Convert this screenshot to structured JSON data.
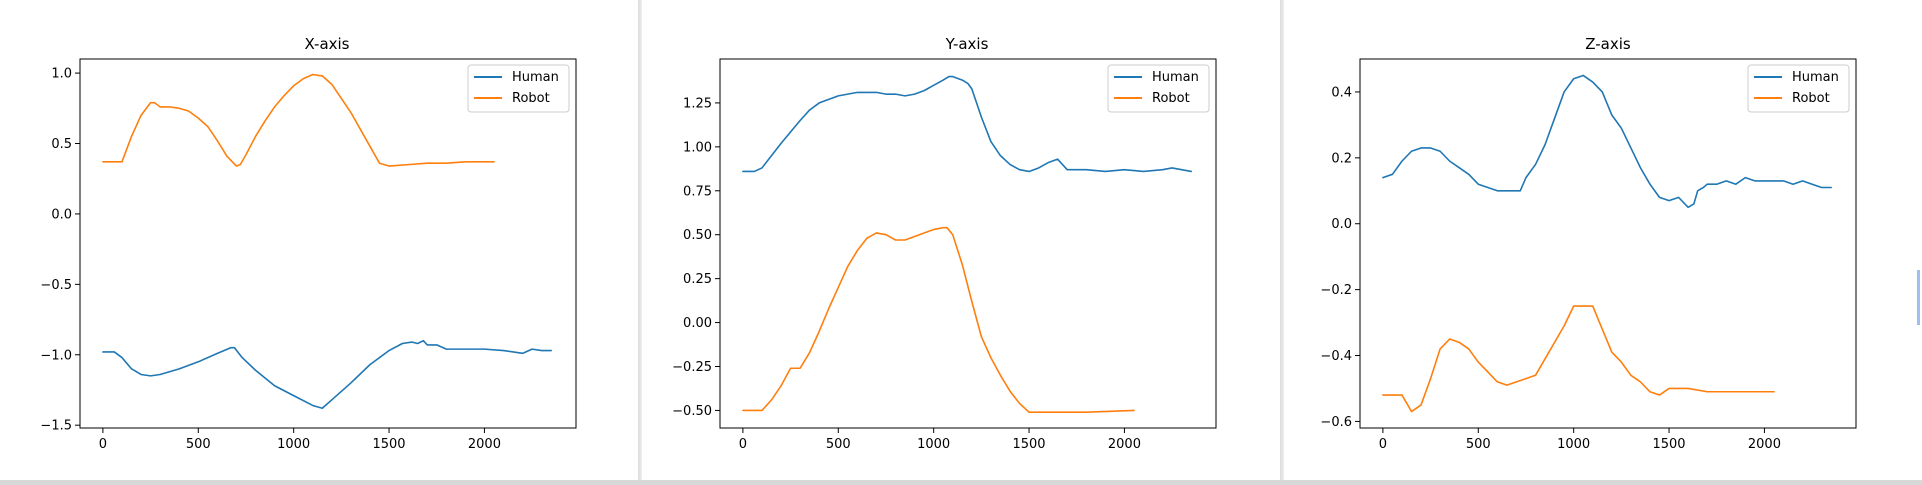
{
  "colors": {
    "human": "#1f77b4",
    "robot": "#ff7f0e"
  },
  "chart_data": [
    {
      "type": "line",
      "title": "X-axis",
      "xlim": [
        -120,
        2480
      ],
      "ylim": [
        -1.52,
        1.1
      ],
      "xticks": [
        0,
        500,
        1000,
        1500,
        2000
      ],
      "xtick_labels": [
        "0",
        "500",
        "1000",
        "1500",
        "2000"
      ],
      "yticks": [
        1.0,
        0.5,
        0.0,
        -0.5,
        -1.0,
        -1.5
      ],
      "ytick_labels": [
        "1.0",
        "0.5",
        "0.0",
        "−0.5",
        "−1.0",
        "−1.5"
      ],
      "legend": "top-right",
      "series": [
        {
          "name": "Human",
          "color": "#1f77b4",
          "x": [
            0,
            60,
            100,
            150,
            200,
            250,
            300,
            400,
            500,
            600,
            670,
            690,
            730,
            800,
            900,
            1000,
            1100,
            1150,
            1200,
            1300,
            1400,
            1500,
            1570,
            1620,
            1650,
            1680,
            1700,
            1750,
            1800,
            1900,
            2000,
            2100,
            2200,
            2250,
            2300,
            2350
          ],
          "y": [
            -0.98,
            -0.98,
            -1.02,
            -1.1,
            -1.14,
            -1.15,
            -1.14,
            -1.1,
            -1.05,
            -0.99,
            -0.95,
            -0.95,
            -1.02,
            -1.11,
            -1.22,
            -1.29,
            -1.36,
            -1.38,
            -1.32,
            -1.2,
            -1.07,
            -0.97,
            -0.92,
            -0.91,
            -0.92,
            -0.9,
            -0.93,
            -0.93,
            -0.96,
            -0.96,
            -0.96,
            -0.97,
            -0.99,
            -0.96,
            -0.97,
            -0.97
          ]
        },
        {
          "name": "Robot",
          "color": "#ff7f0e",
          "x": [
            0,
            100,
            150,
            200,
            250,
            270,
            300,
            350,
            400,
            450,
            500,
            550,
            600,
            650,
            700,
            720,
            750,
            800,
            850,
            900,
            950,
            1000,
            1050,
            1100,
            1150,
            1200,
            1250,
            1300,
            1350,
            1400,
            1450,
            1500,
            1600,
            1700,
            1800,
            1900,
            2050
          ],
          "y": [
            0.37,
            0.37,
            0.55,
            0.7,
            0.79,
            0.79,
            0.76,
            0.76,
            0.75,
            0.73,
            0.68,
            0.62,
            0.52,
            0.41,
            0.34,
            0.35,
            0.42,
            0.55,
            0.66,
            0.76,
            0.84,
            0.91,
            0.96,
            0.99,
            0.98,
            0.92,
            0.82,
            0.72,
            0.6,
            0.48,
            0.36,
            0.34,
            0.35,
            0.36,
            0.36,
            0.37,
            0.37
          ]
        }
      ]
    },
    {
      "type": "line",
      "title": "Y-axis",
      "xlim": [
        -120,
        2480
      ],
      "ylim": [
        -0.6,
        1.5
      ],
      "xticks": [
        0,
        500,
        1000,
        1500,
        2000
      ],
      "xtick_labels": [
        "0",
        "500",
        "1000",
        "1500",
        "2000"
      ],
      "yticks": [
        1.25,
        1.0,
        0.75,
        0.5,
        0.25,
        0.0,
        -0.25,
        -0.5
      ],
      "ytick_labels": [
        "1.25",
        "1.00",
        "0.75",
        "0.50",
        "0.25",
        "0.00",
        "−0.25",
        "−0.50"
      ],
      "legend": "top-right",
      "series": [
        {
          "name": "Human",
          "color": "#1f77b4",
          "x": [
            0,
            60,
            100,
            150,
            200,
            300,
            350,
            400,
            450,
            500,
            550,
            600,
            650,
            700,
            750,
            800,
            850,
            900,
            950,
            1000,
            1050,
            1080,
            1100,
            1150,
            1180,
            1200,
            1250,
            1300,
            1350,
            1400,
            1450,
            1500,
            1550,
            1600,
            1650,
            1700,
            1800,
            1900,
            2000,
            2100,
            2200,
            2250,
            2300,
            2350
          ],
          "y": [
            0.86,
            0.86,
            0.88,
            0.95,
            1.02,
            1.15,
            1.21,
            1.25,
            1.27,
            1.29,
            1.3,
            1.31,
            1.31,
            1.31,
            1.3,
            1.3,
            1.29,
            1.3,
            1.32,
            1.35,
            1.38,
            1.4,
            1.4,
            1.38,
            1.36,
            1.33,
            1.17,
            1.03,
            0.95,
            0.9,
            0.87,
            0.86,
            0.88,
            0.91,
            0.93,
            0.87,
            0.87,
            0.86,
            0.87,
            0.86,
            0.87,
            0.88,
            0.87,
            0.86
          ]
        },
        {
          "name": "Robot",
          "color": "#ff7f0e",
          "x": [
            0,
            100,
            150,
            200,
            250,
            300,
            350,
            400,
            450,
            500,
            550,
            600,
            650,
            700,
            750,
            800,
            850,
            900,
            950,
            1000,
            1050,
            1070,
            1100,
            1150,
            1200,
            1250,
            1300,
            1350,
            1400,
            1450,
            1500,
            1600,
            1800,
            2050
          ],
          "y": [
            -0.5,
            -0.5,
            -0.44,
            -0.36,
            -0.26,
            -0.26,
            -0.17,
            -0.05,
            0.08,
            0.2,
            0.32,
            0.41,
            0.48,
            0.51,
            0.5,
            0.47,
            0.47,
            0.49,
            0.51,
            0.53,
            0.54,
            0.54,
            0.5,
            0.33,
            0.12,
            -0.08,
            -0.2,
            -0.3,
            -0.39,
            -0.46,
            -0.51,
            -0.51,
            -0.51,
            -0.5
          ]
        }
      ]
    },
    {
      "type": "line",
      "title": "Z-axis",
      "xlim": [
        -120,
        2480
      ],
      "ylim": [
        -0.62,
        0.5
      ],
      "xticks": [
        0,
        500,
        1000,
        1500,
        2000
      ],
      "xtick_labels": [
        "0",
        "500",
        "1000",
        "1500",
        "2000"
      ],
      "yticks": [
        0.4,
        0.2,
        0.0,
        -0.2,
        -0.4,
        -0.6
      ],
      "ytick_labels": [
        "0.4",
        "0.2",
        "0.0",
        "−0.2",
        "−0.4",
        "−0.6"
      ],
      "legend": "top-right",
      "series": [
        {
          "name": "Human",
          "color": "#1f77b4",
          "x": [
            0,
            50,
            100,
            150,
            200,
            250,
            300,
            350,
            400,
            450,
            500,
            550,
            600,
            650,
            700,
            720,
            750,
            800,
            850,
            900,
            950,
            1000,
            1050,
            1100,
            1150,
            1200,
            1250,
            1300,
            1350,
            1400,
            1450,
            1500,
            1550,
            1600,
            1630,
            1650,
            1680,
            1700,
            1750,
            1800,
            1850,
            1900,
            1950,
            2000,
            2050,
            2100,
            2150,
            2200,
            2250,
            2300,
            2350
          ],
          "y": [
            0.14,
            0.15,
            0.19,
            0.22,
            0.23,
            0.23,
            0.22,
            0.19,
            0.17,
            0.15,
            0.12,
            0.11,
            0.1,
            0.1,
            0.1,
            0.1,
            0.14,
            0.18,
            0.24,
            0.32,
            0.4,
            0.44,
            0.45,
            0.43,
            0.4,
            0.33,
            0.29,
            0.23,
            0.17,
            0.12,
            0.08,
            0.07,
            0.08,
            0.05,
            0.06,
            0.1,
            0.11,
            0.12,
            0.12,
            0.13,
            0.12,
            0.14,
            0.13,
            0.13,
            0.13,
            0.13,
            0.12,
            0.13,
            0.12,
            0.11,
            0.11
          ]
        },
        {
          "name": "Robot",
          "color": "#ff7f0e",
          "x": [
            0,
            100,
            150,
            200,
            250,
            300,
            350,
            400,
            450,
            500,
            550,
            600,
            650,
            700,
            750,
            800,
            850,
            900,
            950,
            1000,
            1050,
            1100,
            1150,
            1200,
            1250,
            1300,
            1350,
            1400,
            1450,
            1500,
            1550,
            1600,
            1700,
            1800,
            2050
          ],
          "y": [
            -0.52,
            -0.52,
            -0.57,
            -0.55,
            -0.47,
            -0.38,
            -0.35,
            -0.36,
            -0.38,
            -0.42,
            -0.45,
            -0.48,
            -0.49,
            -0.48,
            -0.47,
            -0.46,
            -0.41,
            -0.36,
            -0.31,
            -0.25,
            -0.25,
            -0.25,
            -0.32,
            -0.39,
            -0.42,
            -0.46,
            -0.48,
            -0.51,
            -0.52,
            -0.5,
            -0.5,
            -0.5,
            -0.51,
            -0.51,
            -0.51
          ]
        }
      ]
    }
  ]
}
